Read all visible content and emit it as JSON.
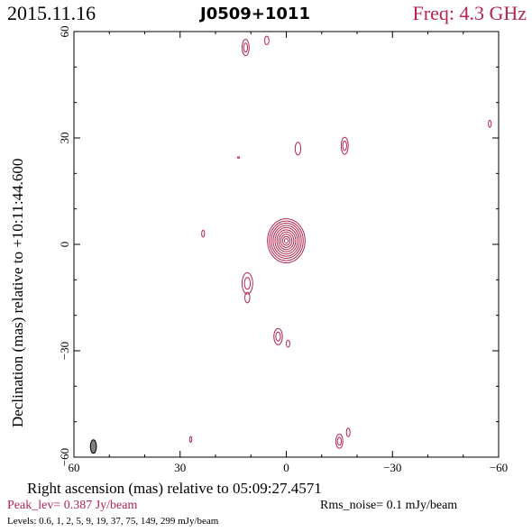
{
  "header": {
    "date": "2015.11.16",
    "source": "J0509+1011",
    "freq": "Freq: 4.3 GHz"
  },
  "footer": {
    "peak": "Peak_lev=  0.387 Jy/beam",
    "rms": "Rms_noise=  0.1 mJy/beam",
    "levels": "Levels: 0.6,    1,    2,    5,    9,   19,   37,   75,  149,  299 mJy/beam"
  },
  "colors": {
    "contour": "#b5254e",
    "beam": "#808080"
  },
  "chart_data": {
    "type": "contour",
    "title": "J0509+1011",
    "xlabel": "Right ascension (mas) relative to 05:09:27.4571",
    "ylabel": "Declination (mas) relative to +10:11:44.600",
    "xlim": [
      60,
      -60
    ],
    "ylim": [
      -60,
      60
    ],
    "xticks": [
      60,
      30,
      0,
      -30,
      -60
    ],
    "yticks": [
      60,
      30,
      0,
      -30,
      -60
    ],
    "xtick_labels": [
      "60",
      "30",
      "0",
      "−30",
      "−60"
    ],
    "ytick_labels": [
      "60",
      "30",
      "0",
      "−30",
      "−60"
    ],
    "levels_mJy_per_beam": [
      0.6,
      1,
      2,
      5,
      9,
      19,
      37,
      75,
      149,
      299
    ],
    "peak_Jy_per_beam": 0.387,
    "rms_mJy_per_beam": 0.1,
    "core": {
      "x": 0,
      "y": 1,
      "nlevels": 10,
      "outer_rx": 5.3,
      "outer_ry": 6.2
    },
    "components": [
      {
        "x": 11.5,
        "y": 55.5,
        "rx": 1.0,
        "ry": 2.3,
        "n": 2
      },
      {
        "x": 5.5,
        "y": 57.5,
        "rx": 0.6,
        "ry": 1.2,
        "n": 1
      },
      {
        "x": -3.3,
        "y": 27.0,
        "rx": 0.8,
        "ry": 1.8,
        "n": 1
      },
      {
        "x": -16.5,
        "y": 27.8,
        "rx": 1.0,
        "ry": 2.4,
        "n": 2
      },
      {
        "x": -57.5,
        "y": 34.0,
        "rx": 0.4,
        "ry": 1.0,
        "n": 1
      },
      {
        "x": 23.5,
        "y": 3.0,
        "rx": 0.4,
        "ry": 1.0,
        "n": 1
      },
      {
        "x": 11.0,
        "y": -11.0,
        "rx": 1.5,
        "ry": 3.0,
        "n": 2
      },
      {
        "x": 11.0,
        "y": -15.0,
        "rx": 0.7,
        "ry": 1.5,
        "n": 1
      },
      {
        "x": 2.3,
        "y": -26.0,
        "rx": 1.2,
        "ry": 2.3,
        "n": 2
      },
      {
        "x": -0.5,
        "y": -28.0,
        "rx": 0.5,
        "ry": 1.0,
        "n": 1
      },
      {
        "x": -15.0,
        "y": -55.5,
        "rx": 1.0,
        "ry": 2.0,
        "n": 2
      },
      {
        "x": -17.5,
        "y": -53.0,
        "rx": 0.5,
        "ry": 1.2,
        "n": 1
      },
      {
        "x": 27.0,
        "y": -55.0,
        "rx": 0.3,
        "ry": 0.8,
        "n": 1
      },
      {
        "x": 13.5,
        "y": 24.5,
        "rx": 0.3,
        "ry": 0.2,
        "n": 1
      }
    ],
    "beam": {
      "x": 54.5,
      "y": -57,
      "major_mas": 3.8,
      "minor_mas": 1.7,
      "pa_deg": 0
    }
  }
}
